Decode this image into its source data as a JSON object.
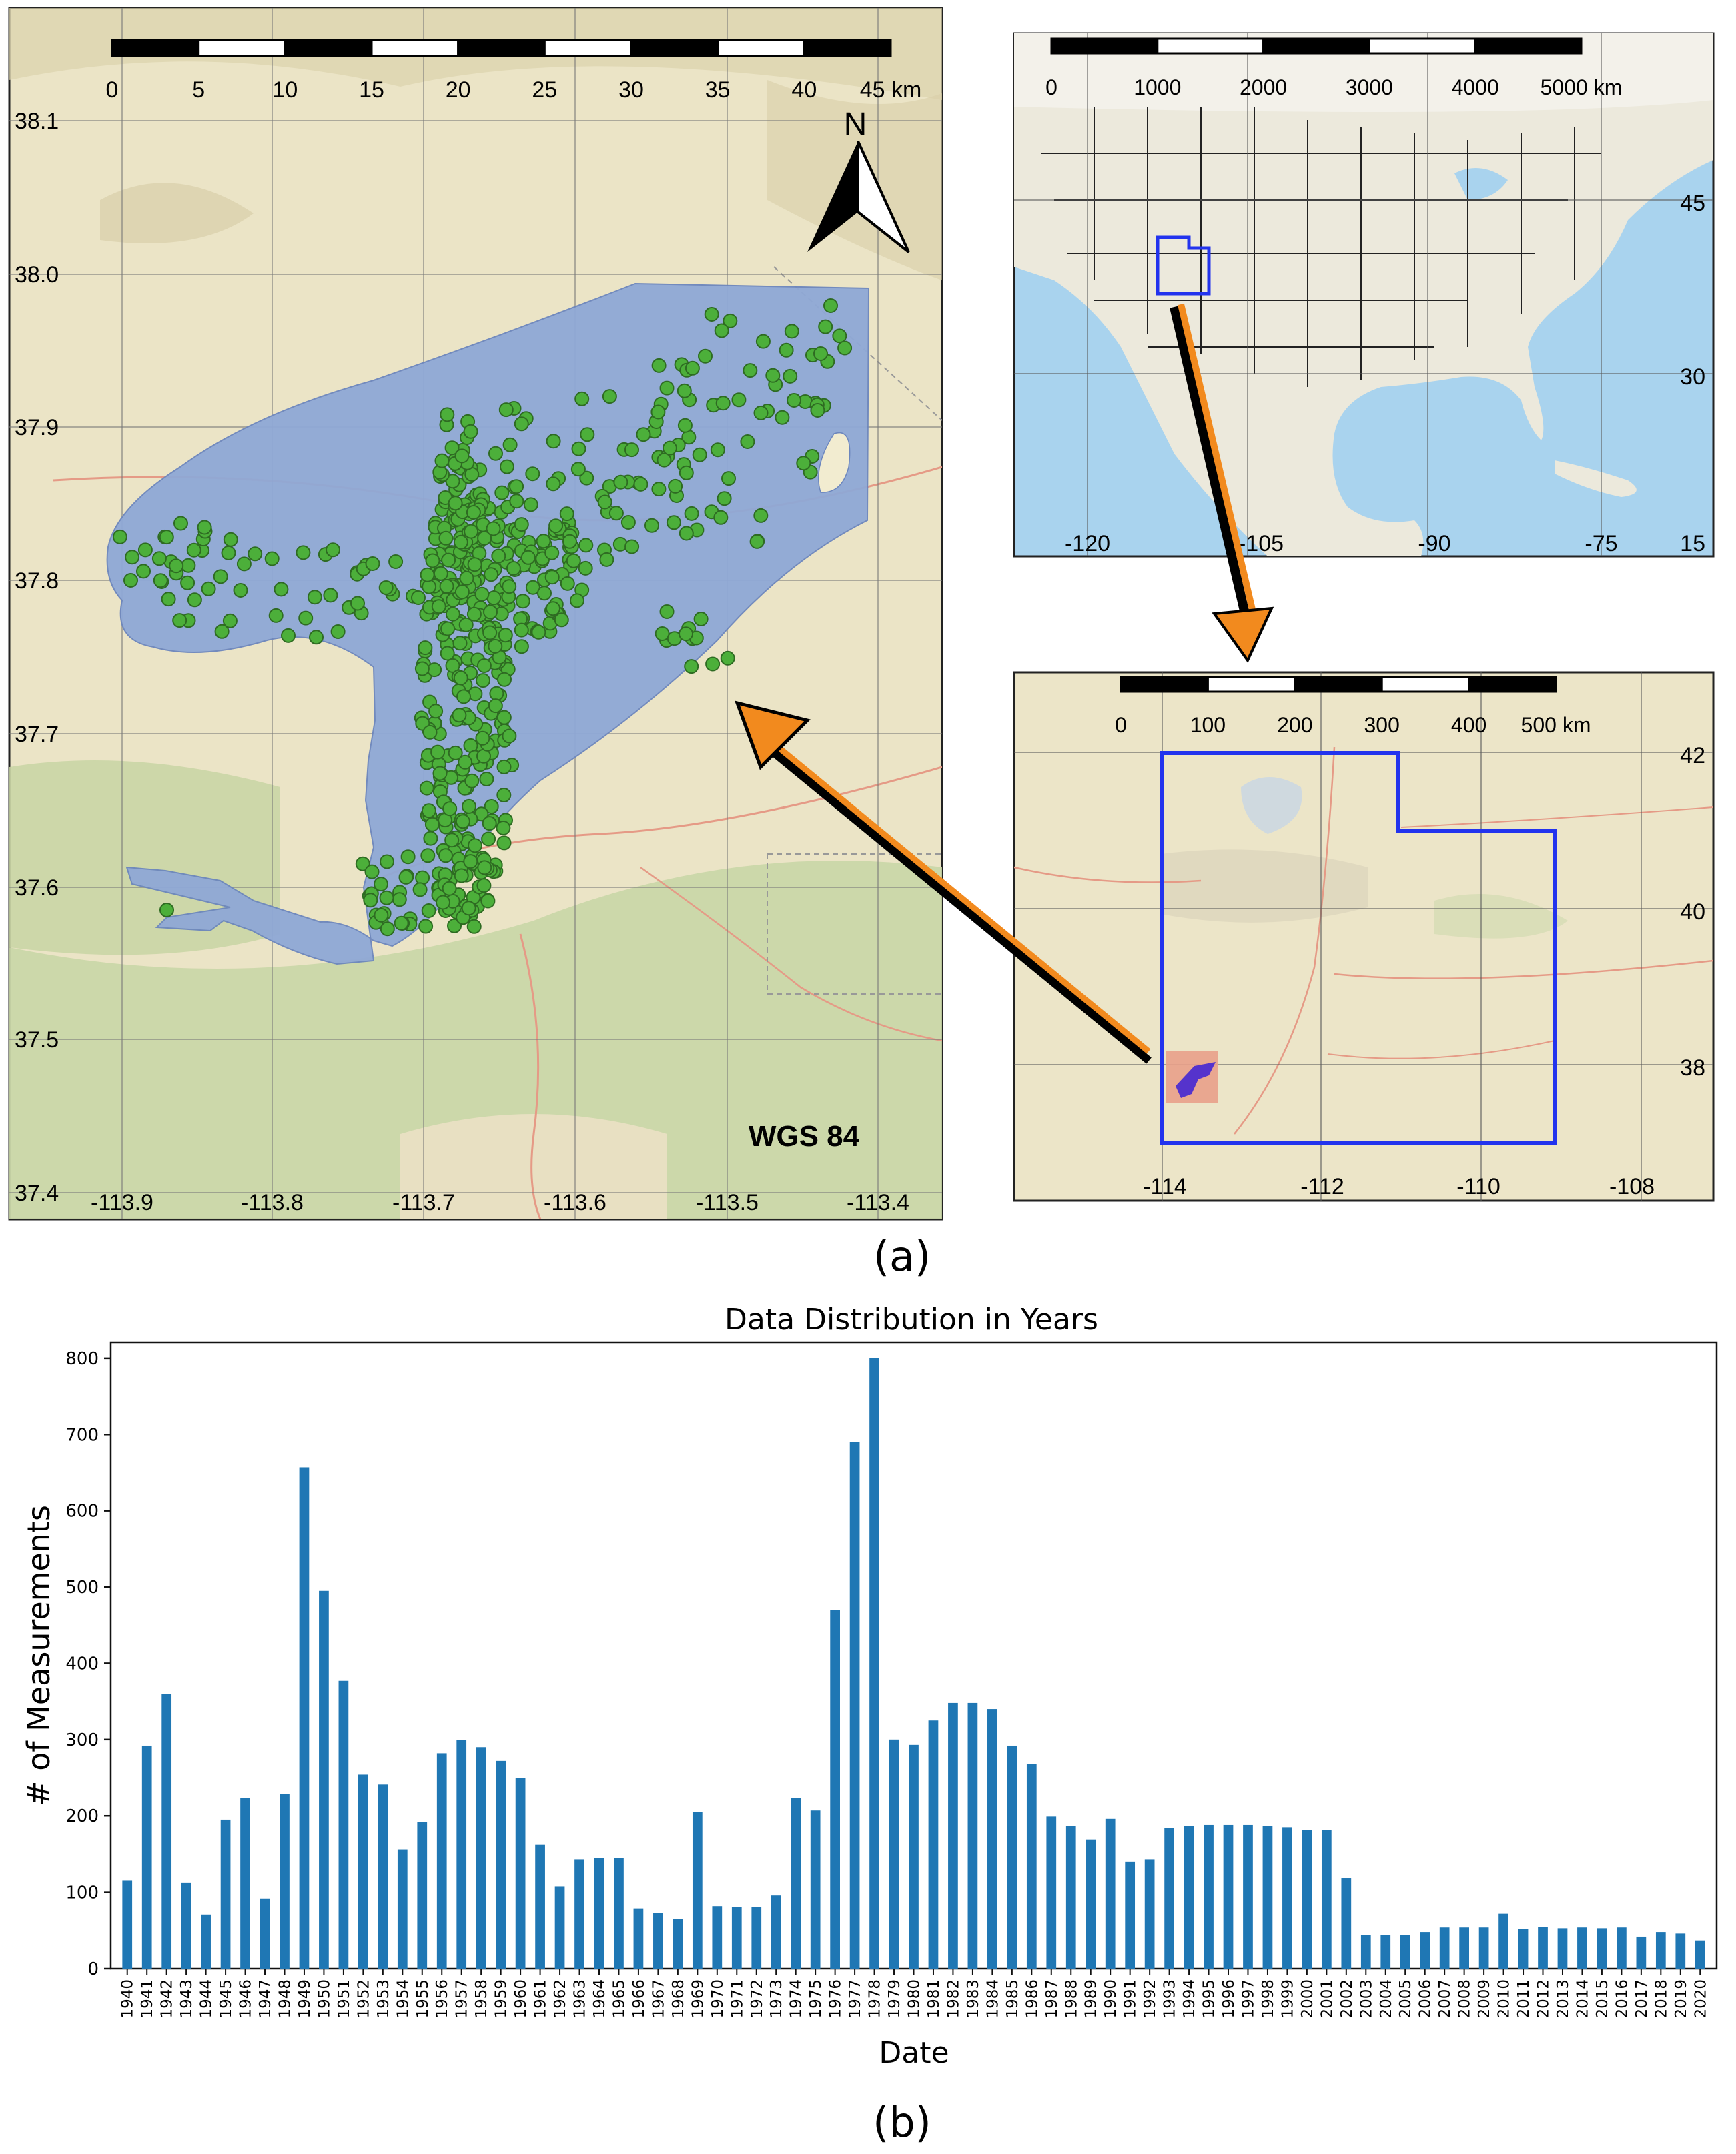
{
  "main_map": {
    "scale_ticks": [
      "0",
      "5",
      "10",
      "15",
      "20",
      "25",
      "30",
      "35",
      "40",
      "45"
    ],
    "scale_unit": "km",
    "lat_labels": [
      "38.1",
      "38.0",
      "37.9",
      "37.8",
      "37.7",
      "37.6",
      "37.5",
      "37.4"
    ],
    "lon_labels": [
      "-113.9",
      "-113.8",
      "-113.7",
      "-113.6",
      "-113.5",
      "-113.4"
    ],
    "north_label": "N",
    "crs_label": "WGS 84",
    "colors": {
      "polygon": "#8fa8d6",
      "points": "#4caf3a",
      "basemap": "#e9e2c4",
      "forest": "#c9d6a6"
    }
  },
  "us_map": {
    "scale_ticks": [
      "0",
      "1000",
      "2000",
      "3000",
      "4000",
      "5000"
    ],
    "scale_unit": "km",
    "lat_labels": [
      "45",
      "30",
      "15"
    ],
    "lon_labels": [
      "-120",
      "-105",
      "-90",
      "-75"
    ],
    "colors": {
      "ocean": "#a9d3ee",
      "land": "#ece9dc",
      "highlight": "#2233ee"
    }
  },
  "utah_map": {
    "scale_ticks": [
      "0",
      "100",
      "200",
      "300",
      "400",
      "500"
    ],
    "scale_unit": "km",
    "lat_labels": [
      "42",
      "40",
      "38"
    ],
    "lon_labels": [
      "-114",
      "-112",
      "-110",
      "-108"
    ],
    "colors": {
      "border": "#2233ee",
      "study_box": "#e9a08a",
      "study_area": "#5533cc"
    }
  },
  "arrows": {
    "colors": {
      "orange": "#f28a1e",
      "black": "#000000"
    }
  },
  "caption_a": "(a)",
  "caption_b": "(b)",
  "chart_data": {
    "type": "bar",
    "title": "Data Distribution in Years",
    "xlabel": "Date",
    "ylabel": "# of Measurements",
    "ylim": [
      0,
      820
    ],
    "yticks": [
      "0",
      "100",
      "200",
      "300",
      "400",
      "500",
      "600",
      "700",
      "800"
    ],
    "bar_color": "#1f77b4",
    "categories": [
      "1940",
      "1941",
      "1942",
      "1943",
      "1944",
      "1945",
      "1946",
      "1947",
      "1948",
      "1949",
      "1950",
      "1951",
      "1952",
      "1953",
      "1954",
      "1955",
      "1956",
      "1957",
      "1958",
      "1959",
      "1960",
      "1961",
      "1962",
      "1963",
      "1964",
      "1965",
      "1966",
      "1967",
      "1968",
      "1969",
      "1970",
      "1971",
      "1972",
      "1973",
      "1974",
      "1975",
      "1976",
      "1977",
      "1978",
      "1979",
      "1980",
      "1981",
      "1982",
      "1983",
      "1984",
      "1985",
      "1986",
      "1987",
      "1988",
      "1989",
      "1990",
      "1991",
      "1992",
      "1993",
      "1994",
      "1995",
      "1996",
      "1997",
      "1998",
      "1999",
      "2000",
      "2001",
      "2002",
      "2003",
      "2004",
      "2005",
      "2006",
      "2007",
      "2008",
      "2009",
      "2010",
      "2011",
      "2012",
      "2013",
      "2014",
      "2015",
      "2016",
      "2017",
      "2018",
      "2019",
      "2020"
    ],
    "values": [
      115,
      292,
      360,
      112,
      71,
      195,
      223,
      92,
      229,
      657,
      495,
      377,
      254,
      241,
      156,
      192,
      282,
      299,
      290,
      272,
      250,
      162,
      108,
      143,
      145,
      145,
      79,
      73,
      65,
      205,
      82,
      81,
      81,
      96,
      223,
      207,
      470,
      690,
      800,
      300,
      293,
      325,
      348,
      348,
      340,
      292,
      268,
      199,
      187,
      169,
      196,
      140,
      143,
      184,
      187,
      188,
      188,
      188,
      187,
      185,
      181,
      181,
      118,
      44,
      44,
      44,
      48,
      54,
      54,
      54,
      72,
      52,
      55,
      53,
      54,
      53,
      54,
      42,
      48,
      46,
      37
    ]
  }
}
